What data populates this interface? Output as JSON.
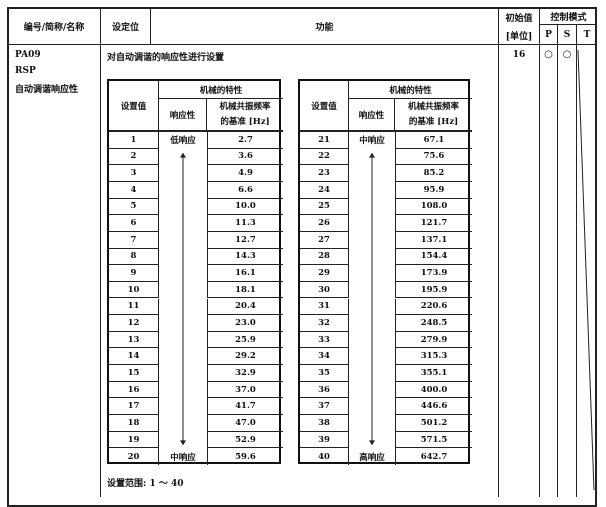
{
  "header": {
    "col_id": "编号/简称/名称",
    "col_setting": "设定位",
    "col_function": "功能",
    "col_initial": "初始值",
    "col_unit": "[单位]",
    "col_mode": "控制模式",
    "mode_p": "P",
    "mode_s": "S",
    "mode_t": "T"
  },
  "param": {
    "code": "PA09",
    "abbr": "RSP",
    "name": "自动调谐响应性",
    "description": "对自动调谐的响应性进行设置",
    "initial": "16",
    "mode_p_symbol": "○",
    "mode_s_symbol": "○"
  },
  "table_header": {
    "setting": "设置值",
    "machine": "机械的特性",
    "response": "响应性",
    "freq_line1": "机械共振频率",
    "freq_line2": "的基准 [Hz]"
  },
  "left_table": {
    "top_label": "低响应",
    "bottom_label": "中响应",
    "rows": [
      [
        "1",
        "2.7"
      ],
      [
        "2",
        "3.6"
      ],
      [
        "3",
        "4.9"
      ],
      [
        "4",
        "6.6"
      ],
      [
        "5",
        "10.0"
      ],
      [
        "6",
        "11.3"
      ],
      [
        "7",
        "12.7"
      ],
      [
        "8",
        "14.3"
      ],
      [
        "9",
        "16.1"
      ],
      [
        "10",
        "18.1"
      ],
      [
        "11",
        "20.4"
      ],
      [
        "12",
        "23.0"
      ],
      [
        "13",
        "25.9"
      ],
      [
        "14",
        "29.2"
      ],
      [
        "15",
        "32.9"
      ],
      [
        "16",
        "37.0"
      ],
      [
        "17",
        "41.7"
      ],
      [
        "18",
        "47.0"
      ],
      [
        "19",
        "52.9"
      ],
      [
        "20",
        "59.6"
      ]
    ]
  },
  "right_table": {
    "top_label": "中响应",
    "bottom_label": "高响应",
    "rows": [
      [
        "21",
        "67.1"
      ],
      [
        "22",
        "75.6"
      ],
      [
        "23",
        "85.2"
      ],
      [
        "24",
        "95.9"
      ],
      [
        "25",
        "108.0"
      ],
      [
        "26",
        "121.7"
      ],
      [
        "27",
        "137.1"
      ],
      [
        "28",
        "154.4"
      ],
      [
        "29",
        "173.9"
      ],
      [
        "30",
        "195.9"
      ],
      [
        "31",
        "220.6"
      ],
      [
        "32",
        "248.5"
      ],
      [
        "33",
        "279.9"
      ],
      [
        "34",
        "315.3"
      ],
      [
        "35",
        "355.1"
      ],
      [
        "36",
        "400.0"
      ],
      [
        "37",
        "446.6"
      ],
      [
        "38",
        "501.2"
      ],
      [
        "39",
        "571.5"
      ],
      [
        "40",
        "642.7"
      ]
    ]
  },
  "range_text": "设置范围: 1 ～ 40"
}
